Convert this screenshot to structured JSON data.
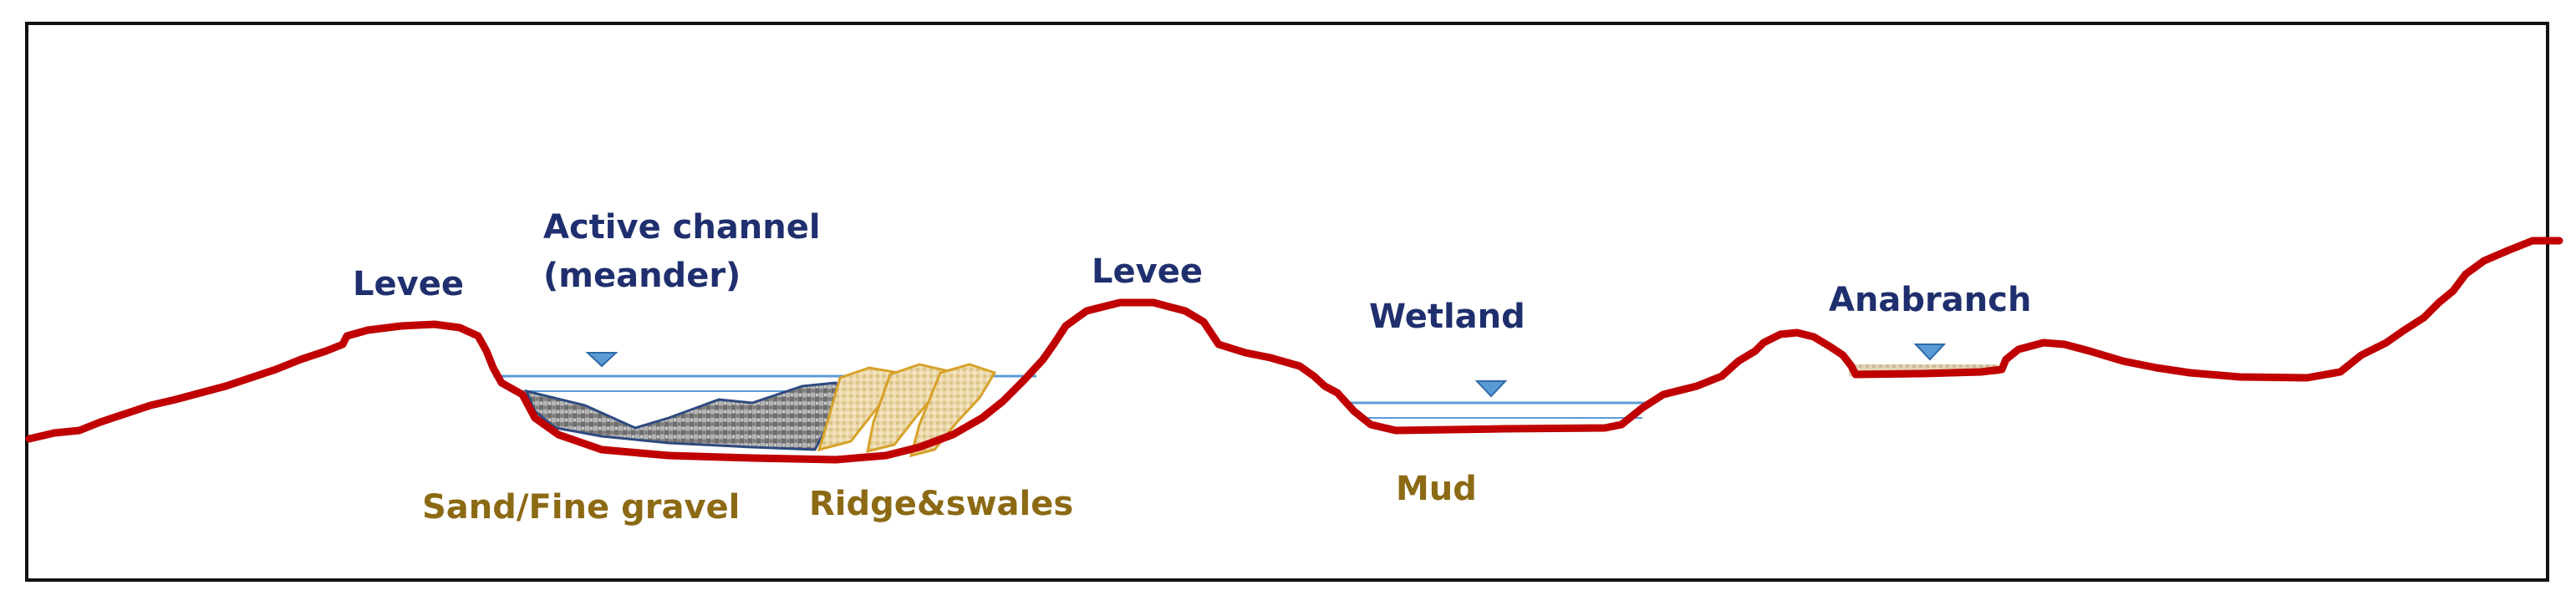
{
  "labels": {
    "levee_left": "Levee",
    "active_channel_line1": "Active channel",
    "active_channel_line2": "(meander)",
    "levee_right": "Levee",
    "wetland": "Wetland",
    "anabranch": "Anabranch",
    "sand_fine_gravel": "Sand/Fine gravel",
    "ridge_swales": "Ridge&swales",
    "mud": "Mud"
  },
  "colors": {
    "ground_profile": "#c00000",
    "water_line": "#5b9bd5",
    "water_marker": "#5b9bd5",
    "label_navy": "#1f2f6e",
    "label_brown": "#8c6a14",
    "sand_fill": "#9a9a9a",
    "ridge_fill": "#e8d2a0",
    "anabranch_fill": "#d9c9a8",
    "frame": "#111111"
  }
}
